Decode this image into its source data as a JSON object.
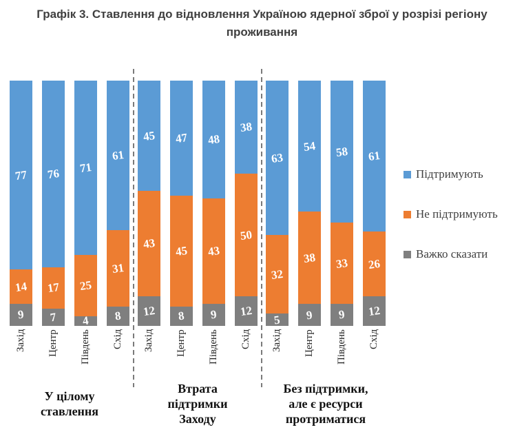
{
  "title": "Графік 3. Ставлення до відновлення Україною ядерної зброї у розрізі регіону проживання",
  "legend": [
    {
      "label": "Підтримують",
      "color": "#5B9BD5"
    },
    {
      "label": "Не підтримують",
      "color": "#ED7D31"
    },
    {
      "label": "Важко сказати",
      "color": "#7F7F7F"
    }
  ],
  "chart_data": {
    "type": "bar",
    "stacked": true,
    "value_format": "percent",
    "ylim": [
      0,
      100
    ],
    "grid": false,
    "legend_position": "right",
    "categories": [
      "Захід",
      "Центр",
      "Південь",
      "Схід"
    ],
    "series_names": [
      "Підтримують",
      "Не підтримують",
      "Важко сказати"
    ],
    "colors": {
      "Підтримують": "#5B9BD5",
      "Не підтримують": "#ED7D31",
      "Важко сказати": "#7F7F7F"
    },
    "groups": [
      {
        "label": "У цілому ставлення",
        "label_lines": "У цілому\nставлення",
        "series": [
          {
            "name": "Підтримують",
            "values": [
              77,
              76,
              71,
              61
            ]
          },
          {
            "name": "Не підтримують",
            "values": [
              14,
              17,
              25,
              31
            ]
          },
          {
            "name": "Важко сказати",
            "values": [
              9,
              7,
              4,
              8
            ]
          }
        ]
      },
      {
        "label": "Втрата підтримки Заходу",
        "label_lines": "Втрата\nпідтримки\nЗаходу",
        "series": [
          {
            "name": "Підтримують",
            "values": [
              45,
              47,
              48,
              38
            ]
          },
          {
            "name": "Не підтримують",
            "values": [
              43,
              45,
              43,
              50
            ]
          },
          {
            "name": "Важко сказати",
            "values": [
              12,
              8,
              9,
              12
            ]
          }
        ]
      },
      {
        "label": "Без підтримки, але є ресурси протриматися",
        "label_lines": "Без підтримки,\nале є ресурси\nпротриматися",
        "series": [
          {
            "name": "Підтримують",
            "values": [
              63,
              54,
              58,
              61
            ]
          },
          {
            "name": "Не підтримують",
            "values": [
              32,
              38,
              33,
              26
            ]
          },
          {
            "name": "Важко сказати",
            "values": [
              5,
              9,
              9,
              12
            ]
          }
        ]
      }
    ]
  }
}
